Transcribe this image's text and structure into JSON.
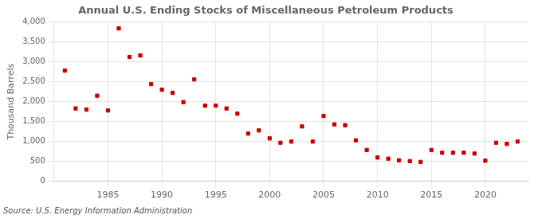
{
  "chart_data": {
    "type": "scatter",
    "title": "Annual U.S. Ending Stocks of Miscellaneous Petroleum Products",
    "ylabel": "Thousand Barrels",
    "source": "Source: U.S. Energy Information Administration",
    "color": "#cc0000",
    "marker": "square",
    "x": [
      1981,
      1982,
      1983,
      1984,
      1985,
      1986,
      1987,
      1988,
      1989,
      1990,
      1991,
      1992,
      1993,
      1994,
      1995,
      1996,
      1997,
      1998,
      1999,
      2000,
      2001,
      2002,
      2003,
      2004,
      2005,
      2006,
      2007,
      2008,
      2009,
      2010,
      2011,
      2012,
      2013,
      2014,
      2015,
      2016,
      2017,
      2018,
      2019,
      2020,
      2021,
      2022,
      2023
    ],
    "values": [
      2780,
      1830,
      1800,
      2150,
      1780,
      3840,
      3120,
      3160,
      2440,
      2300,
      2220,
      1990,
      2560,
      1900,
      1900,
      1830,
      1700,
      1200,
      1280,
      1080,
      970,
      1000,
      1380,
      1000,
      1640,
      1430,
      1410,
      1030,
      790,
      600,
      570,
      530,
      510,
      490,
      790,
      720,
      720,
      720,
      700,
      520,
      970,
      940,
      1000
    ],
    "xlim": [
      1980,
      2024
    ],
    "xticks": [
      1985,
      1990,
      1995,
      2000,
      2005,
      2010,
      2015,
      2020
    ],
    "ylim": [
      0,
      4000
    ],
    "yticks": [
      0,
      500,
      {
        "value": 1000,
        "label": "1,000"
      },
      {
        "value": 1500,
        "label": "1,500"
      },
      {
        "value": 2000,
        "label": "2,000"
      },
      {
        "value": 2500,
        "label": "2,500"
      },
      {
        "value": 3000,
        "label": "3,000"
      },
      {
        "value": 3500,
        "label": "3,500"
      },
      {
        "value": 4000,
        "label": "4,000"
      }
    ],
    "grid": true
  }
}
